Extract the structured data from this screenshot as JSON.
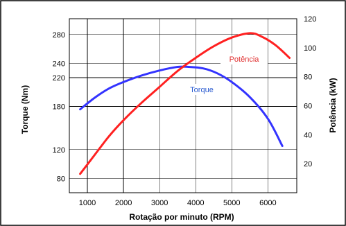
{
  "chart_data": {
    "type": "line",
    "xlabel": "Rotação por minuto (RPM)",
    "ylabel_left": "Torque (Nm)",
    "ylabel_right": "Potência (kW)",
    "xlim": [
      500,
      6800
    ],
    "ylim_left": [
      60,
      302
    ],
    "ylim_right": [
      0,
      120
    ],
    "x_ticks": [
      1000,
      2000,
      3000,
      4000,
      5000,
      6000
    ],
    "y_left_ticks": [
      80,
      120,
      180,
      220,
      240,
      280
    ],
    "y_right_ticks": [
      20,
      40,
      60,
      80,
      100,
      120
    ],
    "grid": true,
    "colors": {
      "torque": "#3333ff",
      "potencia": "#ff2020"
    },
    "series": [
      {
        "name": "Torque",
        "axis": "left",
        "x": [
          800,
          1200,
          1600,
          2000,
          2500,
          3000,
          3500,
          3800,
          4200,
          4600,
          5000,
          5500,
          6000,
          6400
        ],
        "values": [
          176,
          192,
          205,
          214,
          223,
          230,
          235,
          235,
          233,
          226,
          214,
          193,
          163,
          125
        ]
      },
      {
        "name": "Potência",
        "axis": "right",
        "x": [
          800,
          1200,
          1600,
          2000,
          2500,
          3000,
          3500,
          4000,
          4500,
          5000,
          5500,
          5800,
          6200,
          6600
        ],
        "values": [
          13,
          26,
          39,
          50,
          62,
          73,
          84,
          93,
          101,
          107,
          110,
          108,
          102,
          93
        ]
      }
    ]
  }
}
